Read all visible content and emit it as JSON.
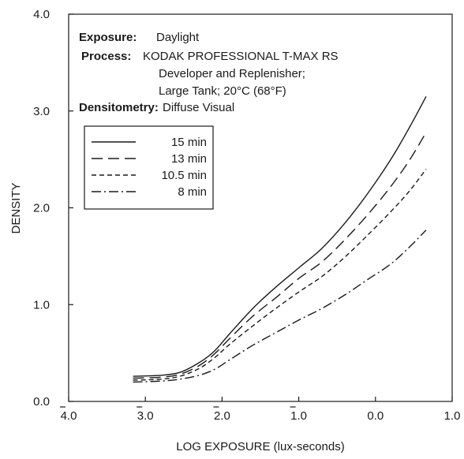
{
  "chart_data": {
    "type": "line",
    "xlabel": "LOG EXPOSURE (lux-seconds)",
    "ylabel": "DENSITY",
    "xlim": [
      -4.0,
      1.0
    ],
    "ylim": [
      0.0,
      4.0
    ],
    "x_ticks": [
      {
        "value": -4.0,
        "label": "4.0",
        "bar": true
      },
      {
        "value": -3.0,
        "label": "3.0",
        "bar": true
      },
      {
        "value": -2.0,
        "label": "2.0",
        "bar": true
      },
      {
        "value": -1.0,
        "label": "1.0",
        "bar": true
      },
      {
        "value": 0.0,
        "label": "0.0",
        "bar": false
      },
      {
        "value": 1.0,
        "label": "1.0",
        "bar": false
      }
    ],
    "y_ticks": [
      {
        "value": 0.0,
        "label": "0.0"
      },
      {
        "value": 1.0,
        "label": "1.0"
      },
      {
        "value": 2.0,
        "label": "2.0"
      },
      {
        "value": 3.0,
        "label": "3.0"
      },
      {
        "value": 4.0,
        "label": "4.0"
      }
    ],
    "info": {
      "exposure_label": "Exposure:",
      "exposure_value": "Daylight",
      "process_label": "Process:",
      "process_lines": [
        "KODAK PROFESSIONAL T-MAX RS",
        "Developer and Replenisher;",
        "Large Tank; 20°C (68°F)"
      ],
      "densitometry_label": "Densitometry:",
      "densitometry_value": "Diffuse Visual"
    },
    "series": [
      {
        "name": "15 min",
        "dash": "none",
        "points": [
          [
            -3.16,
            0.26
          ],
          [
            -2.8,
            0.27
          ],
          [
            -2.55,
            0.3
          ],
          [
            -2.3,
            0.4
          ],
          [
            -2.1,
            0.52
          ],
          [
            -1.9,
            0.7
          ],
          [
            -1.6,
            0.96
          ],
          [
            -1.3,
            1.18
          ],
          [
            -1.0,
            1.38
          ],
          [
            -0.7,
            1.58
          ],
          [
            -0.4,
            1.84
          ],
          [
            -0.1,
            2.15
          ],
          [
            0.2,
            2.5
          ],
          [
            0.45,
            2.84
          ],
          [
            0.66,
            3.15
          ]
        ]
      },
      {
        "name": "13 min",
        "dash": "14,7",
        "points": [
          [
            -3.16,
            0.24
          ],
          [
            -2.8,
            0.25
          ],
          [
            -2.55,
            0.28
          ],
          [
            -2.3,
            0.37
          ],
          [
            -2.1,
            0.49
          ],
          [
            -1.9,
            0.65
          ],
          [
            -1.6,
            0.88
          ],
          [
            -1.3,
            1.07
          ],
          [
            -1.0,
            1.27
          ],
          [
            -0.7,
            1.44
          ],
          [
            -0.4,
            1.67
          ],
          [
            -0.1,
            1.93
          ],
          [
            0.2,
            2.22
          ],
          [
            0.45,
            2.5
          ],
          [
            0.66,
            2.78
          ]
        ]
      },
      {
        "name": "10.5 min",
        "dash": "6,4",
        "points": [
          [
            -3.16,
            0.22
          ],
          [
            -2.8,
            0.23
          ],
          [
            -2.55,
            0.26
          ],
          [
            -2.3,
            0.34
          ],
          [
            -2.1,
            0.45
          ],
          [
            -1.9,
            0.59
          ],
          [
            -1.6,
            0.78
          ],
          [
            -1.3,
            0.96
          ],
          [
            -1.0,
            1.13
          ],
          [
            -0.7,
            1.29
          ],
          [
            -0.4,
            1.49
          ],
          [
            -0.1,
            1.72
          ],
          [
            0.2,
            1.96
          ],
          [
            0.45,
            2.18
          ],
          [
            0.66,
            2.4
          ]
        ]
      },
      {
        "name": "8 min",
        "dash": "12,4,2,4",
        "points": [
          [
            -3.16,
            0.2
          ],
          [
            -2.8,
            0.21
          ],
          [
            -2.55,
            0.23
          ],
          [
            -2.3,
            0.27
          ],
          [
            -2.1,
            0.33
          ],
          [
            -1.9,
            0.43
          ],
          [
            -1.6,
            0.58
          ],
          [
            -1.3,
            0.71
          ],
          [
            -1.0,
            0.84
          ],
          [
            -0.7,
            0.96
          ],
          [
            -0.4,
            1.1
          ],
          [
            -0.1,
            1.26
          ],
          [
            0.2,
            1.42
          ],
          [
            0.45,
            1.6
          ],
          [
            0.66,
            1.77
          ]
        ]
      }
    ]
  }
}
